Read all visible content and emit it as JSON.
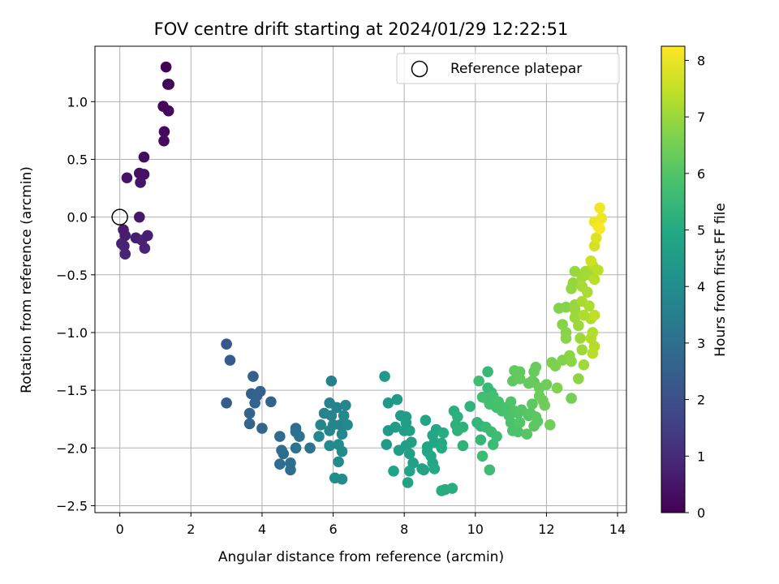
{
  "chart_data": {
    "type": "scatter",
    "title": "FOV centre drift starting at 2024/01/29 12:22:51",
    "xlabel": "Angular distance from reference (arcmin)",
    "ylabel": "Rotation from reference (arcmin)",
    "colorbar_label": "Hours from first FF file",
    "xlim": [
      -0.7,
      14.25
    ],
    "ylim": [
      -2.56,
      1.48
    ],
    "clim": [
      0,
      8.25
    ],
    "x_ticks": [
      0,
      2,
      4,
      6,
      8,
      10,
      12,
      14
    ],
    "y_ticks": [
      -2.5,
      -2.0,
      -1.5,
      -1.0,
      -0.5,
      0.0,
      0.5,
      1.0
    ],
    "y_tick_labels": [
      "−2.5",
      "−2.0",
      "−1.5",
      "−1.0",
      "−0.5",
      "0.0",
      "0.5",
      "1.0"
    ],
    "colorbar_ticks": [
      0,
      1,
      2,
      3,
      4,
      5,
      6,
      7,
      8
    ],
    "grid": true,
    "legend": {
      "position": "top-right",
      "entries": [
        "Reference platepar"
      ]
    },
    "reference_point": {
      "x": 0.0,
      "y": 0.0
    },
    "colormap": "viridis",
    "points": [
      [
        1.3,
        1.3,
        0.05
      ],
      [
        1.35,
        1.15,
        0.1
      ],
      [
        1.38,
        1.15,
        0.12
      ],
      [
        1.22,
        0.96,
        0.15
      ],
      [
        1.37,
        0.92,
        0.18
      ],
      [
        1.25,
        0.74,
        0.22
      ],
      [
        1.24,
        0.66,
        0.25
      ],
      [
        0.68,
        0.52,
        0.3
      ],
      [
        0.55,
        0.38,
        0.35
      ],
      [
        0.68,
        0.37,
        0.38
      ],
      [
        0.2,
        0.34,
        0.42
      ],
      [
        0.58,
        0.3,
        0.45
      ],
      [
        0.55,
        0.0,
        0.55
      ],
      [
        0.1,
        -0.11,
        0.6
      ],
      [
        0.15,
        -0.16,
        0.65
      ],
      [
        0.45,
        -0.18,
        0.7
      ],
      [
        0.78,
        -0.16,
        0.72
      ],
      [
        0.62,
        -0.2,
        0.75
      ],
      [
        0.05,
        -0.23,
        0.78
      ],
      [
        0.12,
        -0.25,
        0.8
      ],
      [
        0.7,
        -0.27,
        0.82
      ],
      [
        0.15,
        -0.32,
        0.85
      ],
      [
        3.0,
        -1.1,
        2.3
      ],
      [
        3.1,
        -1.24,
        2.35
      ],
      [
        3.0,
        -1.61,
        2.4
      ],
      [
        3.75,
        -1.38,
        2.5
      ],
      [
        3.7,
        -1.53,
        2.52
      ],
      [
        3.95,
        -1.51,
        2.55
      ],
      [
        3.85,
        -1.55,
        2.58
      ],
      [
        3.8,
        -1.61,
        2.6
      ],
      [
        4.25,
        -1.6,
        2.62
      ],
      [
        3.65,
        -1.7,
        2.64
      ],
      [
        3.65,
        -1.79,
        2.66
      ],
      [
        4.0,
        -1.83,
        2.68
      ],
      [
        4.5,
        -1.9,
        2.9
      ],
      [
        4.55,
        -2.02,
        2.92
      ],
      [
        4.6,
        -2.05,
        2.94
      ],
      [
        4.5,
        -2.14,
        2.96
      ],
      [
        4.8,
        -2.13,
        2.98
      ],
      [
        4.8,
        -2.19,
        3.0
      ],
      [
        4.95,
        -1.83,
        3.05
      ],
      [
        4.95,
        -1.86,
        3.08
      ],
      [
        5.05,
        -1.9,
        3.1
      ],
      [
        4.95,
        -2.0,
        3.12
      ],
      [
        5.35,
        -2.0,
        3.15
      ],
      [
        5.95,
        -1.42,
        3.6
      ],
      [
        5.75,
        -1.7,
        3.62
      ],
      [
        5.9,
        -1.61,
        3.64
      ],
      [
        6.1,
        -1.65,
        3.66
      ],
      [
        5.95,
        -1.72,
        3.68
      ],
      [
        5.65,
        -1.8,
        3.7
      ],
      [
        6.0,
        -1.8,
        3.72
      ],
      [
        6.2,
        -1.8,
        3.74
      ],
      [
        5.9,
        -1.85,
        3.76
      ],
      [
        5.6,
        -1.9,
        3.78
      ],
      [
        6.35,
        -1.63,
        3.8
      ],
      [
        6.3,
        -1.72,
        3.82
      ],
      [
        6.4,
        -1.8,
        3.84
      ],
      [
        6.25,
        -1.88,
        3.86
      ],
      [
        5.9,
        -1.98,
        3.88
      ],
      [
        6.15,
        -1.97,
        3.9
      ],
      [
        6.25,
        -2.03,
        3.92
      ],
      [
        6.15,
        -2.12,
        3.94
      ],
      [
        6.05,
        -2.26,
        3.96
      ],
      [
        6.25,
        -2.27,
        3.98
      ],
      [
        7.45,
        -1.38,
        4.4
      ],
      [
        7.55,
        -1.61,
        4.42
      ],
      [
        7.8,
        -1.58,
        4.44
      ],
      [
        7.55,
        -1.85,
        4.46
      ],
      [
        7.5,
        -1.97,
        4.48
      ],
      [
        7.75,
        -1.82,
        4.5
      ],
      [
        7.9,
        -1.72,
        4.52
      ],
      [
        8.05,
        -1.73,
        4.54
      ],
      [
        8.05,
        -1.78,
        4.56
      ],
      [
        8.0,
        -1.85,
        4.58
      ],
      [
        7.85,
        -2.02,
        4.6
      ],
      [
        8.15,
        -1.85,
        4.62
      ],
      [
        8.05,
        -1.98,
        4.64
      ],
      [
        8.2,
        -1.95,
        4.66
      ],
      [
        8.15,
        -2.05,
        4.68
      ],
      [
        8.25,
        -2.13,
        4.7
      ],
      [
        7.7,
        -2.2,
        4.72
      ],
      [
        8.15,
        -2.2,
        4.74
      ],
      [
        8.1,
        -2.3,
        4.76
      ],
      [
        8.5,
        -2.18,
        4.78
      ],
      [
        8.55,
        -2.19,
        4.8
      ],
      [
        8.6,
        -1.76,
        4.82
      ],
      [
        8.65,
        -1.99,
        4.84
      ],
      [
        8.65,
        -2.03,
        4.86
      ],
      [
        8.8,
        -1.89,
        4.88
      ],
      [
        8.9,
        -1.84,
        4.9
      ],
      [
        8.85,
        -1.95,
        4.92
      ],
      [
        8.75,
        -2.07,
        4.94
      ],
      [
        8.8,
        -2.13,
        4.96
      ],
      [
        8.85,
        -2.18,
        4.98
      ],
      [
        9.05,
        -1.96,
        5.0
      ],
      [
        9.05,
        -2.0,
        5.02
      ],
      [
        9.1,
        -1.87,
        5.04
      ],
      [
        9.05,
        -2.37,
        5.06
      ],
      [
        9.15,
        -2.36,
        5.08
      ],
      [
        9.35,
        -2.35,
        5.1
      ],
      [
        9.4,
        -1.68,
        5.2
      ],
      [
        9.5,
        -1.73,
        5.22
      ],
      [
        9.45,
        -1.8,
        5.24
      ],
      [
        9.5,
        -1.85,
        5.26
      ],
      [
        9.65,
        -1.82,
        5.28
      ],
      [
        9.85,
        -1.64,
        5.3
      ],
      [
        9.65,
        -1.98,
        5.32
      ],
      [
        10.05,
        -1.78,
        5.4
      ],
      [
        10.15,
        -1.81,
        5.42
      ],
      [
        10.15,
        -1.93,
        5.44
      ],
      [
        10.35,
        -1.34,
        5.5
      ],
      [
        10.35,
        -1.48,
        5.52
      ],
      [
        10.45,
        -1.52,
        5.54
      ],
      [
        10.3,
        -1.82,
        5.56
      ],
      [
        10.45,
        -1.86,
        5.58
      ],
      [
        10.5,
        -1.97,
        5.6
      ],
      [
        10.6,
        -1.9,
        5.62
      ],
      [
        10.2,
        -2.07,
        5.64
      ],
      [
        10.4,
        -2.19,
        5.66
      ],
      [
        10.1,
        -1.42,
        5.68
      ],
      [
        10.2,
        -1.56,
        5.7
      ],
      [
        10.3,
        -1.57,
        5.72
      ],
      [
        10.4,
        -1.62,
        5.74
      ],
      [
        10.5,
        -1.55,
        5.76
      ],
      [
        10.6,
        -1.65,
        5.78
      ],
      [
        10.75,
        -1.68,
        5.8
      ],
      [
        10.65,
        -1.6,
        5.82
      ],
      [
        10.85,
        -1.65,
        5.84
      ],
      [
        10.95,
        -1.72,
        5.86
      ],
      [
        11.0,
        -1.78,
        5.88
      ],
      [
        11.05,
        -1.85,
        5.9
      ],
      [
        11.2,
        -1.86,
        5.92
      ],
      [
        11.0,
        -1.6,
        5.94
      ],
      [
        11.1,
        -1.68,
        5.96
      ],
      [
        11.2,
        -1.7,
        5.98
      ],
      [
        11.25,
        -1.78,
        6.0
      ],
      [
        11.3,
        -1.67,
        6.02
      ],
      [
        11.45,
        -1.88,
        6.04
      ],
      [
        11.5,
        -1.72,
        6.06
      ],
      [
        11.55,
        -1.7,
        6.08
      ],
      [
        11.7,
        -1.73,
        6.1
      ],
      [
        11.75,
        -1.77,
        6.12
      ],
      [
        11.65,
        -1.81,
        6.14
      ],
      [
        11.6,
        -1.62,
        6.16
      ],
      [
        11.65,
        -1.43,
        6.18
      ],
      [
        11.05,
        -1.42,
        6.2
      ],
      [
        11.1,
        -1.33,
        6.22
      ],
      [
        11.25,
        -1.34,
        6.24
      ],
      [
        11.25,
        -1.4,
        6.26
      ],
      [
        11.5,
        -1.44,
        6.28
      ],
      [
        11.6,
        -1.42,
        6.3
      ],
      [
        11.65,
        -1.34,
        6.32
      ],
      [
        11.7,
        -1.3,
        6.34
      ],
      [
        11.8,
        -1.48,
        6.36
      ],
      [
        11.8,
        -1.55,
        6.38
      ],
      [
        12.0,
        -1.45,
        6.4
      ],
      [
        11.9,
        -1.59,
        6.42
      ],
      [
        11.95,
        -1.63,
        6.44
      ],
      [
        12.1,
        -1.8,
        6.46
      ],
      [
        12.7,
        -1.57,
        6.5
      ],
      [
        12.15,
        -1.26,
        6.6
      ],
      [
        12.25,
        -1.29,
        6.62
      ],
      [
        12.3,
        -1.48,
        6.64
      ],
      [
        12.45,
        -1.24,
        6.66
      ],
      [
        12.35,
        -0.79,
        6.7
      ],
      [
        12.55,
        -0.78,
        6.72
      ],
      [
        12.45,
        -0.93,
        6.74
      ],
      [
        12.55,
        -1.0,
        6.76
      ],
      [
        12.55,
        -1.05,
        6.78
      ],
      [
        12.65,
        -1.2,
        6.8
      ],
      [
        12.7,
        -1.25,
        6.82
      ],
      [
        12.9,
        -1.4,
        6.84
      ],
      [
        12.7,
        -0.62,
        6.9
      ],
      [
        12.75,
        -0.57,
        6.92
      ],
      [
        12.8,
        -0.47,
        6.94
      ],
      [
        12.8,
        -0.76,
        6.96
      ],
      [
        12.8,
        -0.8,
        6.98
      ],
      [
        12.8,
        -0.87,
        7.0
      ],
      [
        12.9,
        -0.94,
        7.02
      ],
      [
        12.95,
        -1.05,
        7.04
      ],
      [
        13.0,
        -1.15,
        7.06
      ],
      [
        13.05,
        -1.28,
        7.08
      ],
      [
        13.0,
        -0.52,
        7.1
      ],
      [
        13.1,
        -0.47,
        7.12
      ],
      [
        13.2,
        -0.5,
        7.14
      ],
      [
        13.0,
        -0.6,
        7.16
      ],
      [
        13.15,
        -0.65,
        7.18
      ],
      [
        13.0,
        -0.73,
        7.2
      ],
      [
        13.2,
        -0.77,
        7.22
      ],
      [
        13.05,
        -0.85,
        7.24
      ],
      [
        13.25,
        -0.88,
        7.26
      ],
      [
        13.3,
        -1.0,
        7.28
      ],
      [
        13.25,
        -1.05,
        7.3
      ],
      [
        13.35,
        -1.12,
        7.32
      ],
      [
        13.3,
        -1.18,
        7.34
      ],
      [
        13.3,
        -0.42,
        7.36
      ],
      [
        13.35,
        -0.54,
        7.38
      ],
      [
        13.45,
        -0.46,
        7.4
      ],
      [
        13.35,
        -0.85,
        7.42
      ],
      [
        13.25,
        -0.38,
        7.6
      ],
      [
        13.35,
        -0.25,
        7.7
      ],
      [
        13.4,
        -0.18,
        7.8
      ],
      [
        13.45,
        -0.05,
        7.9
      ],
      [
        13.35,
        -0.04,
        8.0
      ],
      [
        13.55,
        -0.01,
        8.05
      ],
      [
        13.5,
        0.08,
        8.1
      ],
      [
        13.45,
        -0.08,
        8.15
      ],
      [
        13.5,
        -0.1,
        8.2
      ]
    ]
  }
}
